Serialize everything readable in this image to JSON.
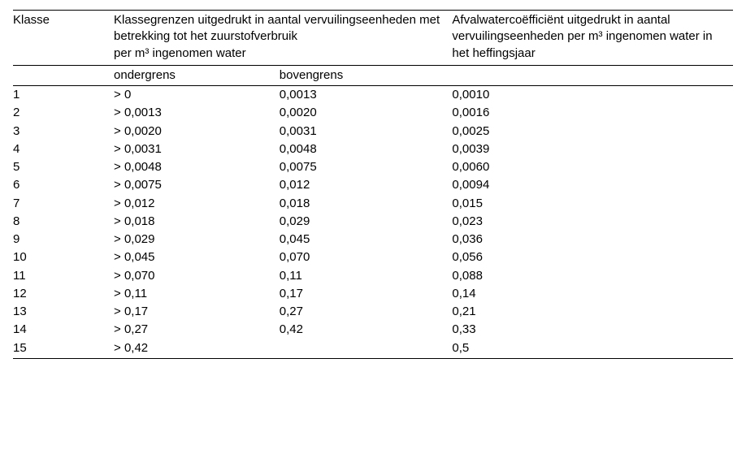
{
  "type": "table",
  "background_color": "#ffffff",
  "text_color": "#000000",
  "rule_color": "#000000",
  "font_family": "Arial",
  "font_size_pt": 11,
  "columns": {
    "klasse": {
      "header": "Klasse",
      "width_pct": 14
    },
    "grenzen": {
      "header": "Klassegrenzen uitgedrukt in aantal vervuilingseenheden met betrekking tot het zuurstofverbruik\nper m³ ingenomen water",
      "width_pct": 47
    },
    "ondergrens": {
      "header": "ondergrens",
      "width_pct": 23
    },
    "bovengrens": {
      "header": "bovengrens",
      "width_pct": 24
    },
    "coef": {
      "header": "Afvalwatercoëfficiënt uitgedrukt in aantal vervuilingseenheden per m³ ingenomen water in het heffingsjaar",
      "width_pct": 39
    }
  },
  "rows": [
    {
      "klasse": "1",
      "onder": "> 0",
      "boven": "0,0013",
      "coef": "0,0010"
    },
    {
      "klasse": "2",
      "onder": "> 0,0013",
      "boven": "0,0020",
      "coef": "0,0016"
    },
    {
      "klasse": "3",
      "onder": "> 0,0020",
      "boven": "0,0031",
      "coef": "0,0025"
    },
    {
      "klasse": "4",
      "onder": "> 0,0031",
      "boven": "0,0048",
      "coef": "0,0039"
    },
    {
      "klasse": "5",
      "onder": "> 0,0048",
      "boven": "0,0075",
      "coef": "0,0060"
    },
    {
      "klasse": "6",
      "onder": "> 0,0075",
      "boven": "0,012",
      "coef": "0,0094"
    },
    {
      "klasse": "7",
      "onder": "> 0,012",
      "boven": "0,018",
      "coef": "0,015"
    },
    {
      "klasse": "8",
      "onder": "> 0,018",
      "boven": "0,029",
      "coef": "0,023"
    },
    {
      "klasse": "9",
      "onder": "> 0,029",
      "boven": "0,045",
      "coef": "0,036"
    },
    {
      "klasse": "10",
      "onder": "> 0,045",
      "boven": "0,070",
      "coef": "0,056"
    },
    {
      "klasse": "11",
      "onder": "> 0,070",
      "boven": "0,11",
      "coef": "0,088"
    },
    {
      "klasse": "12",
      "onder": "> 0,11",
      "boven": "0,17",
      "coef": "0,14"
    },
    {
      "klasse": "13",
      "onder": "> 0,17",
      "boven": "0,27",
      "coef": "0,21"
    },
    {
      "klasse": "14",
      "onder": "> 0,27",
      "boven": "0,42",
      "coef": "0,33"
    },
    {
      "klasse": "15",
      "onder": "> 0,42",
      "boven": "",
      "coef": "0,5"
    }
  ]
}
